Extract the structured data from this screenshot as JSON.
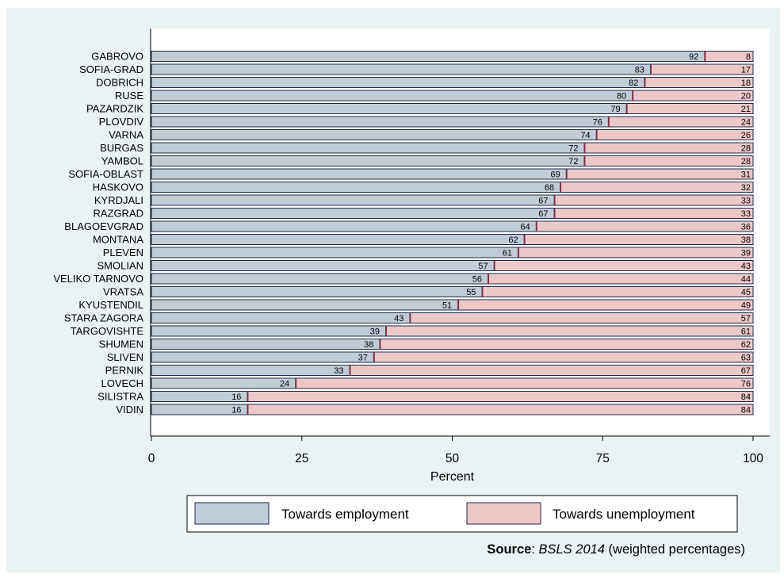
{
  "chart_data": {
    "type": "bar",
    "orientation": "horizontal",
    "stacked": true,
    "categories": [
      "GABROVO",
      "SOFIA-GRAD",
      "DOBRICH",
      "RUSE",
      "PAZARDZIK",
      "PLOVDIV",
      "VARNA",
      "BURGAS",
      "YAMBOL",
      "SOFIA-OBLAST",
      "HASKOVO",
      "KYRDJALI",
      "RAZGRAD",
      "BLAGOEVGRAD",
      "MONTANA",
      "PLEVEN",
      "SMOLIAN",
      "VELIKO TARNOVO",
      "VRATSA",
      "KYUSTENDIL",
      "STARA ZAGORA",
      "TARGOVISHTE",
      "SHUMEN",
      "SLIVEN",
      "PERNIK",
      "LOVECH",
      "SILISTRA",
      "VIDIN"
    ],
    "series": [
      {
        "name": "Towards employment",
        "color": "#c1ccd7",
        "values": [
          92,
          83,
          82,
          80,
          79,
          76,
          74,
          72,
          72,
          69,
          68,
          67,
          67,
          64,
          62,
          61,
          57,
          56,
          55,
          51,
          43,
          39,
          38,
          37,
          33,
          24,
          16,
          16
        ]
      },
      {
        "name": "Towards unemployment",
        "color": "#ecc8c9",
        "values": [
          8,
          17,
          18,
          20,
          21,
          24,
          26,
          28,
          28,
          31,
          32,
          33,
          33,
          36,
          38,
          39,
          43,
          44,
          45,
          49,
          57,
          61,
          62,
          63,
          67,
          76,
          84,
          84
        ]
      }
    ],
    "xlabel": "Percent",
    "xlim": [
      0,
      100
    ],
    "xticks": [
      0,
      25,
      50,
      75,
      100
    ],
    "legend_position": "bottom",
    "grid": false
  },
  "source": {
    "label": "Source",
    "separator": ": ",
    "dataset": "BSLS 2014",
    "note": " (weighted percentages)"
  },
  "colors": {
    "panel_background": "#eaf2f3",
    "plot_background": "#ffffff",
    "bar_outline": "#1b2a4a",
    "divider": "#7a3048"
  }
}
